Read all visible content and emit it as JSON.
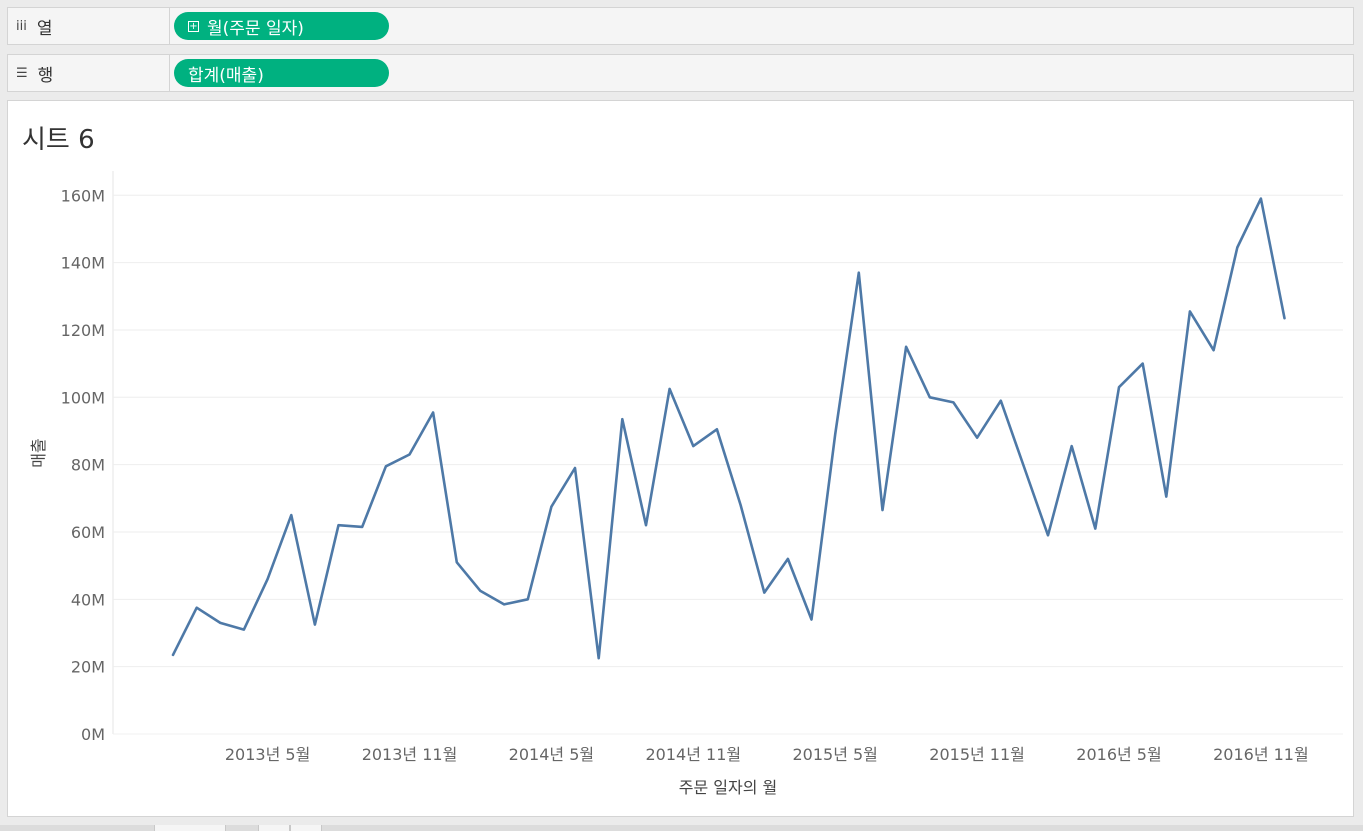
{
  "columns_shelf": {
    "label": "열",
    "icon": "columns-icon",
    "pill_label": "월(주문 일자)",
    "pill_color": "#00b180"
  },
  "rows_shelf": {
    "label": "행",
    "icon": "rows-icon",
    "pill_label": "합계(매출)",
    "pill_color": "#00b180"
  },
  "sheet": {
    "title": "시트 6"
  },
  "chart_data": {
    "type": "line",
    "xlabel": "주문 일자의 월",
    "ylabel": "매출",
    "ylim": [
      0,
      168
    ],
    "y_unit": "M",
    "y_ticks": [
      0,
      20,
      40,
      60,
      80,
      100,
      120,
      140,
      160
    ],
    "y_tick_labels": [
      "0M",
      "20M",
      "40M",
      "60M",
      "80M",
      "100M",
      "120M",
      "140M",
      "160M"
    ],
    "x_ticks": [
      "2013년 5월",
      "2013년 11월",
      "2014년 5월",
      "2014년 11월",
      "2015년 5월",
      "2015년 11월",
      "2016년 5월",
      "2016년 11월"
    ],
    "x_start": "2013-01",
    "x": [
      "2013-01",
      "2013-02",
      "2013-03",
      "2013-04",
      "2013-05",
      "2013-06",
      "2013-07",
      "2013-08",
      "2013-09",
      "2013-10",
      "2013-11",
      "2013-12",
      "2014-01",
      "2014-02",
      "2014-03",
      "2014-04",
      "2014-05",
      "2014-06",
      "2014-07",
      "2014-08",
      "2014-09",
      "2014-10",
      "2014-11",
      "2014-12",
      "2015-01",
      "2015-02",
      "2015-03",
      "2015-04",
      "2015-05",
      "2015-06",
      "2015-07",
      "2015-08",
      "2015-09",
      "2015-10",
      "2015-11",
      "2015-12",
      "2016-01",
      "2016-02",
      "2016-03",
      "2016-04",
      "2016-05",
      "2016-06",
      "2016-07",
      "2016-08",
      "2016-09",
      "2016-10",
      "2016-11",
      "2016-12"
    ],
    "series": [
      {
        "color": "#4e79a7",
        "values": [
          23.5,
          37.5,
          33,
          31,
          46,
          65,
          32.5,
          62,
          61.5,
          79.5,
          83,
          95.5,
          51,
          42.5,
          38.5,
          40,
          67.5,
          79,
          22.5,
          93.5,
          62,
          102.5,
          85.5,
          90.5,
          68,
          42,
          52,
          34,
          89,
          137,
          66.5,
          115,
          100,
          98.5,
          88,
          99,
          79,
          59,
          85.5,
          61,
          103,
          110,
          70.5,
          125.5,
          114,
          144.5,
          159,
          123.5
        ]
      }
    ],
    "grid": true
  }
}
